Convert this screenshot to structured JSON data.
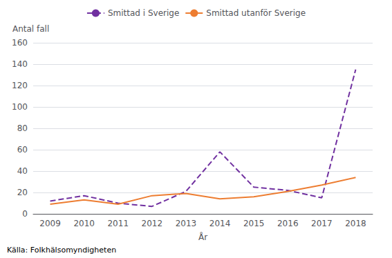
{
  "chart_data": {
    "type": "line",
    "xlabel": "År",
    "ylabel": "Antal fall",
    "categories": [
      "2009",
      "2010",
      "2011",
      "2012",
      "2013",
      "2014",
      "2015",
      "2016",
      "2017",
      "2018"
    ],
    "series": [
      {
        "name": "Smittad i Sverige",
        "color": "#7030a0",
        "line_style": "dashed",
        "values": [
          12,
          17,
          10,
          7,
          21,
          58,
          25,
          22,
          15,
          135
        ]
      },
      {
        "name": "Smittad utanför Sverige",
        "color": "#ed7d31",
        "line_style": "solid",
        "values": [
          9,
          13,
          9,
          17,
          19,
          14,
          16,
          21,
          27,
          34
        ]
      }
    ],
    "ylim": [
      0,
      160
    ],
    "yticks": [
      0,
      20,
      40,
      60,
      80,
      100,
      120,
      140,
      160
    ],
    "grid": true,
    "legend": "top",
    "annotations": [
      "Källa: Folkhälsomyndigheten"
    ]
  }
}
